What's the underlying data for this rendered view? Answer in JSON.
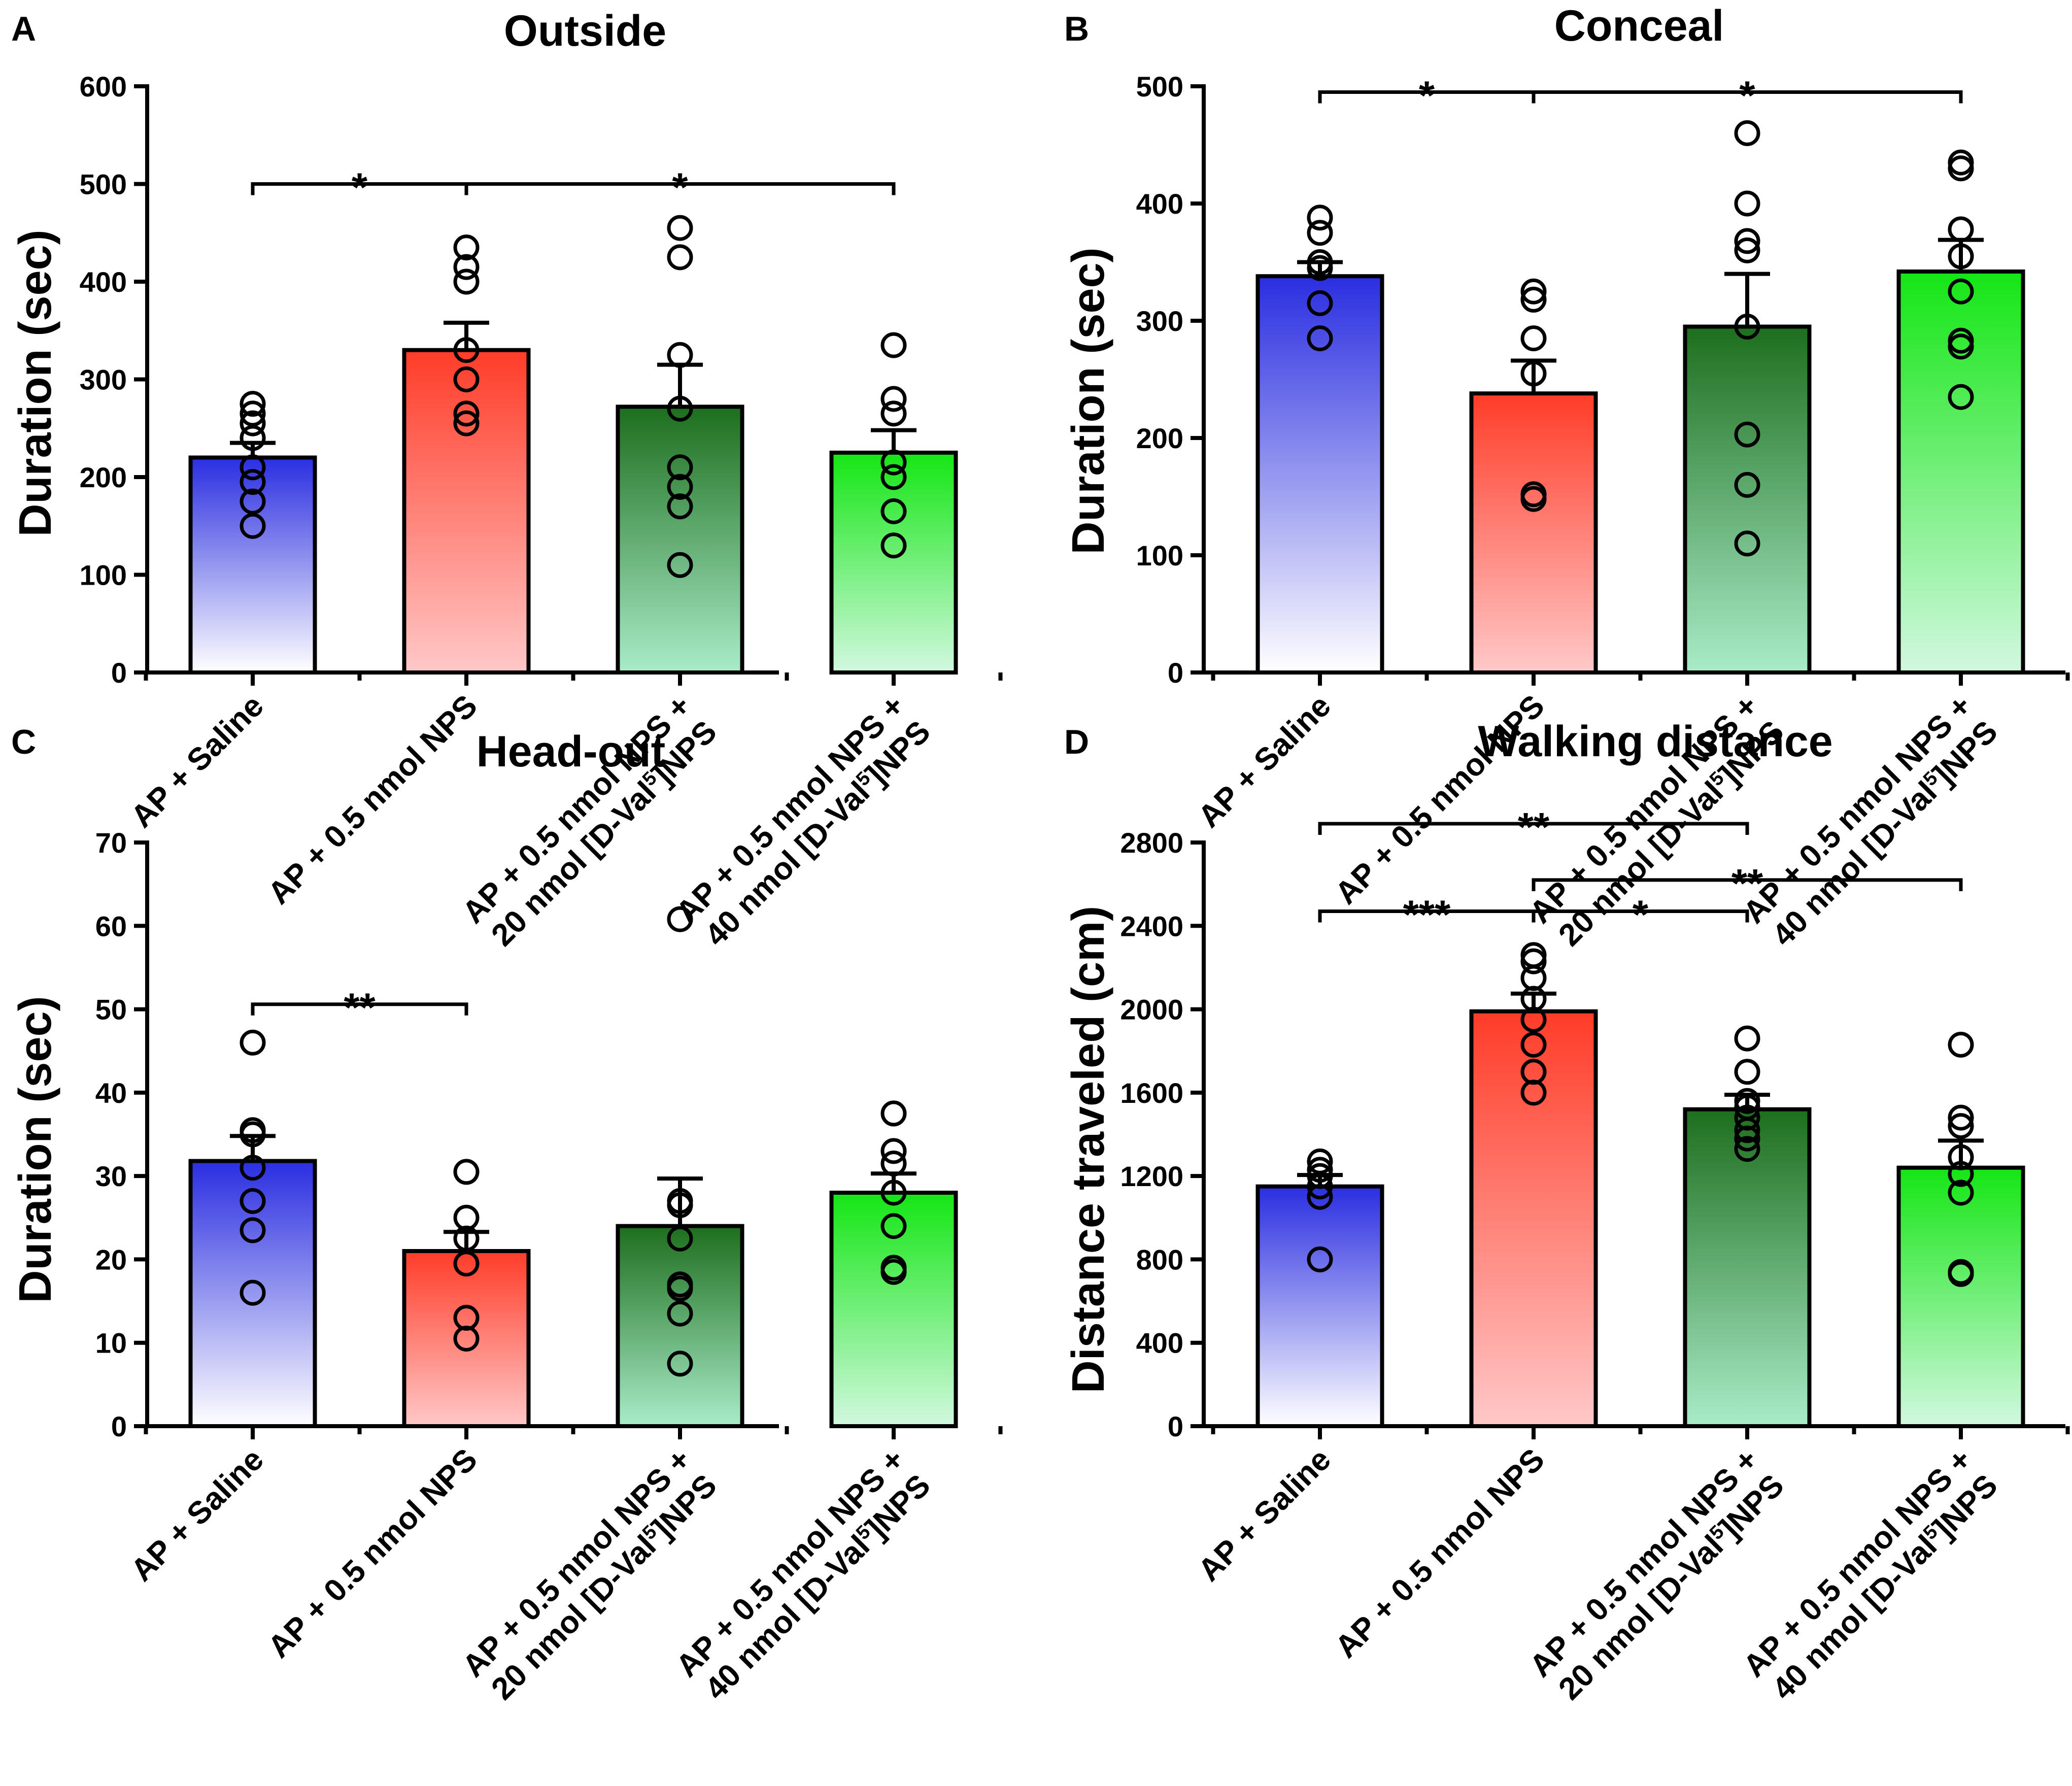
{
  "colors": {
    "saline_top": "#2a2ee0",
    "saline_bottom": "#ffffff",
    "nps_top": "#ff3c28",
    "nps_bottom": "#ffc8c8",
    "dval20_top": "#1e6e1e",
    "dval20_bottom": "#a8ecc8",
    "dval40_top": "#14e614",
    "dval40_bottom": "#d2f8e0"
  },
  "categories": [
    {
      "lines": [
        "AP + Saline"
      ],
      "color_key": "saline"
    },
    {
      "lines": [
        "AP + 0.5 nmol NPS"
      ],
      "color_key": "nps"
    },
    {
      "lines": [
        "AP + 0.5 nmol NPS +",
        "20 nmol [D-Val5]NPS"
      ],
      "color_key": "dval20"
    },
    {
      "lines": [
        "AP + 0.5 nmol NPS +",
        "40 nmol [D-Val5]NPS"
      ],
      "color_key": "dval40"
    }
  ],
  "chart_data": [
    {
      "panel": "A",
      "type": "bar",
      "title": "Outside",
      "ylabel": "Duration (sec)",
      "ylim": [
        0,
        600
      ],
      "yticks": [
        "0",
        "100",
        "200",
        "300",
        "400",
        "500",
        "600"
      ],
      "ytick_values": [
        0,
        100,
        200,
        300,
        400,
        500,
        600
      ],
      "series": [
        {
          "name": "AP + Saline",
          "mean": 220,
          "sem": 15,
          "points": [
            150,
            175,
            195,
            210,
            240,
            255,
            265,
            275
          ]
        },
        {
          "name": "AP + 0.5 nmol NPS",
          "mean": 330,
          "sem": 28,
          "points": [
            255,
            265,
            300,
            330,
            400,
            415,
            435
          ]
        },
        {
          "name": "AP + 0.5 nmol NPS + 20 nmol [D-Val5]NPS",
          "mean": 272,
          "sem": 43,
          "points": [
            110,
            170,
            190,
            210,
            270,
            325,
            425,
            455
          ]
        },
        {
          "name": "AP + 0.5 nmol NPS + 40 nmol [D-Val5]NPS",
          "mean": 225,
          "sem": 23,
          "points": [
            130,
            165,
            200,
            215,
            265,
            280,
            335
          ]
        }
      ],
      "significance": [
        {
          "from": 0,
          "to": 1,
          "label": "*",
          "level": 500
        },
        {
          "from": 1,
          "to": 3,
          "label": "*",
          "level": 500
        }
      ]
    },
    {
      "panel": "B",
      "type": "bar",
      "title": "Conceal",
      "ylabel": "Duration (sec)",
      "ylim": [
        0,
        500
      ],
      "yticks": [
        "0",
        "100",
        "200",
        "300",
        "400",
        "500"
      ],
      "ytick_values": [
        0,
        100,
        200,
        300,
        400,
        500
      ],
      "series": [
        {
          "name": "AP + Saline",
          "mean": 338,
          "sem": 12,
          "points": [
            285,
            315,
            345,
            350,
            375,
            388
          ]
        },
        {
          "name": "AP + 0.5 nmol NPS",
          "mean": 238,
          "sem": 28,
          "points": [
            148,
            152,
            255,
            285,
            318,
            325
          ]
        },
        {
          "name": "AP + 0.5 nmol NPS + 20 nmol [D-Val5]NPS",
          "mean": 295,
          "sem": 45,
          "points": [
            110,
            160,
            203,
            295,
            360,
            368,
            400,
            460
          ]
        },
        {
          "name": "AP + 0.5 nmol NPS + 40 nmol [D-Val5]NPS",
          "mean": 342,
          "sem": 27,
          "points": [
            235,
            278,
            283,
            325,
            355,
            378,
            430,
            435
          ]
        }
      ],
      "significance": [
        {
          "from": 0,
          "to": 1,
          "label": "*",
          "level": 495
        },
        {
          "from": 1,
          "to": 3,
          "label": "*",
          "level": 495
        }
      ]
    },
    {
      "panel": "C",
      "type": "bar",
      "title": "Head-out",
      "ylabel": "Duration (sec)",
      "ylim": [
        0,
        70
      ],
      "yticks": [
        "0",
        "10",
        "20",
        "30",
        "40",
        "50",
        "60",
        "70"
      ],
      "ytick_values": [
        0,
        10,
        20,
        30,
        40,
        50,
        60,
        70
      ],
      "series": [
        {
          "name": "AP + Saline",
          "mean": 31.8,
          "sem": 3.0,
          "points": [
            16,
            23.5,
            27,
            31,
            35,
            35.5,
            46
          ]
        },
        {
          "name": "AP + 0.5 nmol NPS",
          "mean": 21,
          "sem": 2.3,
          "points": [
            10.5,
            13,
            19.5,
            22.5,
            25,
            30.5
          ]
        },
        {
          "name": "AP + 0.5 nmol NPS + 20 nmol [D-Val5]NPS",
          "mean": 24,
          "sem": 5.7,
          "points": [
            7.5,
            13.5,
            16.5,
            17,
            22.5,
            26.5,
            27,
            60.8
          ]
        },
        {
          "name": "AP + 0.5 nmol NPS + 40 nmol [D-Val5]NPS",
          "mean": 28,
          "sem": 2.3,
          "points": [
            18.5,
            19,
            24,
            28,
            31.5,
            33,
            37.5
          ]
        }
      ],
      "significance": [
        {
          "from": 0,
          "to": 1,
          "label": "**",
          "level": 50.6
        }
      ]
    },
    {
      "panel": "D",
      "type": "bar",
      "title": "Walking distance",
      "ylabel": "Distance traveled (cm)",
      "ylim": [
        0,
        2800
      ],
      "yticks": [
        "0",
        "400",
        "800",
        "1200",
        "1600",
        "2000",
        "2400",
        "2800"
      ],
      "ytick_values": [
        0,
        400,
        800,
        1200,
        1600,
        2000,
        2400,
        2800
      ],
      "series": [
        {
          "name": "AP + Saline",
          "mean": 1150,
          "sem": 55,
          "points": [
            800,
            1100,
            1150,
            1200,
            1230,
            1270
          ]
        },
        {
          "name": "AP + 0.5 nmol NPS",
          "mean": 1990,
          "sem": 85,
          "points": [
            1600,
            1700,
            1830,
            1950,
            2050,
            2150,
            2230,
            2260
          ]
        },
        {
          "name": "AP + 0.5 nmol NPS + 20 nmol [D-Val5]NPS",
          "mean": 1520,
          "sem": 70,
          "points": [
            1330,
            1380,
            1420,
            1480,
            1530,
            1560,
            1700,
            1860
          ]
        },
        {
          "name": "AP + 0.5 nmol NPS + 40 nmol [D-Val5]NPS",
          "mean": 1240,
          "sem": 130,
          "points": [
            730,
            740,
            1120,
            1210,
            1290,
            1440,
            1480,
            1830
          ]
        }
      ],
      "significance": [
        {
          "from": 0,
          "to": 2,
          "label": "**",
          "level": 2890
        },
        {
          "from": 1,
          "to": 3,
          "label": "**",
          "level": 2620
        },
        {
          "from": 0,
          "to": 1,
          "label": "***",
          "level": 2470
        },
        {
          "from": 1,
          "to": 2,
          "label": "*",
          "level": 2470
        }
      ]
    }
  ]
}
